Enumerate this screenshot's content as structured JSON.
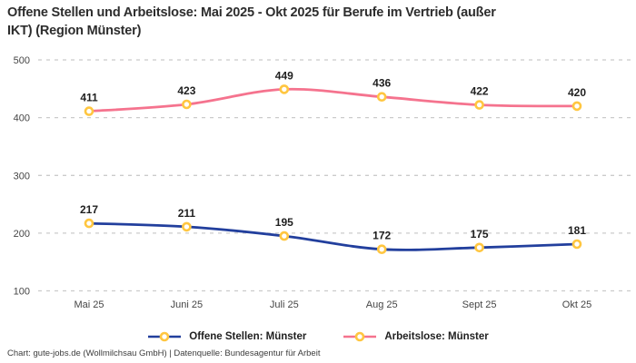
{
  "title": {
    "line1": "Offene Stellen und Arbeitslose: Mai 2025 - Okt 2025 für Berufe im Vertrieb (außer",
    "line2": "IKT) (Region Münster)"
  },
  "footer": "Chart: gute-jobs.de (Wollmilchsau GmbH) | Datenquelle: Bundesagentur für Arbeit",
  "colors": {
    "open_positions_line": "#223f9d",
    "unemployed_line": "#f5738e",
    "marker_ring": "#ffc640",
    "marker_fill": "#ffffff",
    "grid": "#cbcbcb",
    "title_text": "#2d2d2d",
    "data_label_text": "#1f1f1f"
  },
  "legend": [
    {
      "label": "Offene Stellen: Münster",
      "color": "#223f9d"
    },
    {
      "label": "Arbeitslose: Münster",
      "color": "#f5738e"
    }
  ],
  "chart_data": {
    "type": "line",
    "title": "Offene Stellen und Arbeitslose: Mai 2025 - Okt 2025 für Berufe im Vertrieb (außer IKT) (Region Münster)",
    "categories": [
      "Mai 25",
      "Juni 25",
      "Juli 25",
      "Aug 25",
      "Sept 25",
      "Okt 25"
    ],
    "series": [
      {
        "name": "Offene Stellen: Münster",
        "color": "#223f9d",
        "values": [
          217,
          211,
          195,
          172,
          175,
          181
        ]
      },
      {
        "name": "Arbeitslose: Münster",
        "color": "#f5738e",
        "values": [
          411,
          423,
          449,
          436,
          422,
          420
        ]
      }
    ],
    "ylim": [
      100,
      500
    ],
    "yticks": [
      500,
      400,
      300,
      200,
      100
    ],
    "grid": "horizontal-dashed",
    "legend_position": "bottom",
    "xlabel": "",
    "ylabel": ""
  }
}
